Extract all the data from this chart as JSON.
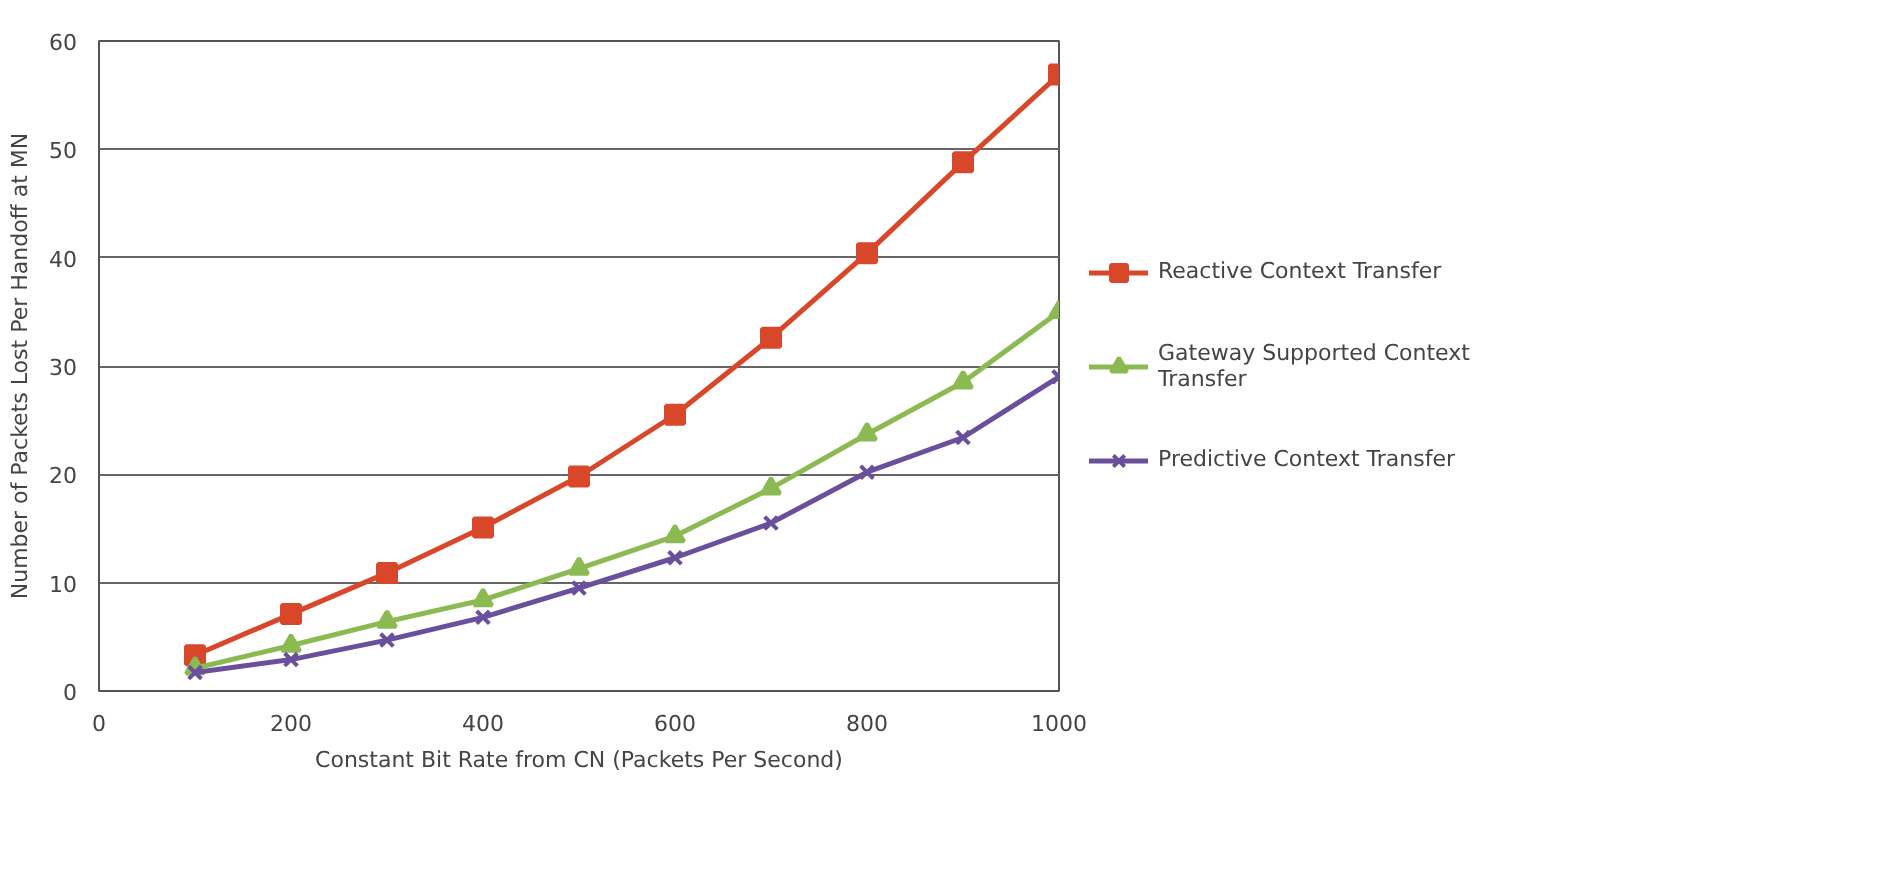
{
  "chart_data": {
    "type": "line",
    "xlabel": "Constant Bit Rate from CN (Packets Per Second)",
    "ylabel": "Number of Packets Lost Per Handoff at MN",
    "x": [
      100,
      200,
      300,
      400,
      500,
      600,
      700,
      800,
      900,
      1000
    ],
    "series": [
      {
        "name": "Reactive Context Transfer",
        "color": "#d9472b",
        "marker": "square",
        "values": [
          3.3,
          7.1,
          10.9,
          15.1,
          19.8,
          25.5,
          32.6,
          40.4,
          48.8,
          56.9
        ]
      },
      {
        "name": "Gateway Supported Context Transfer",
        "color": "#8cba52",
        "marker": "triangle",
        "values": [
          2.1,
          4.2,
          6.4,
          8.4,
          11.3,
          14.3,
          18.7,
          23.7,
          28.5,
          35.0
        ]
      },
      {
        "name": "Predictive Context Transfer",
        "color": "#6a4f9c",
        "marker": "cross",
        "values": [
          1.7,
          2.9,
          4.7,
          6.8,
          9.5,
          12.3,
          15.5,
          20.2,
          23.4,
          29.0
        ]
      }
    ],
    "xlim": [
      0,
      1000
    ],
    "xticks": [
      0,
      200,
      400,
      600,
      800,
      1000
    ],
    "ylim": [
      0,
      60
    ],
    "yticks": [
      0,
      10,
      20,
      30,
      40,
      50,
      60
    ],
    "grid": "y",
    "legend": "right",
    "line_style": "solid"
  }
}
